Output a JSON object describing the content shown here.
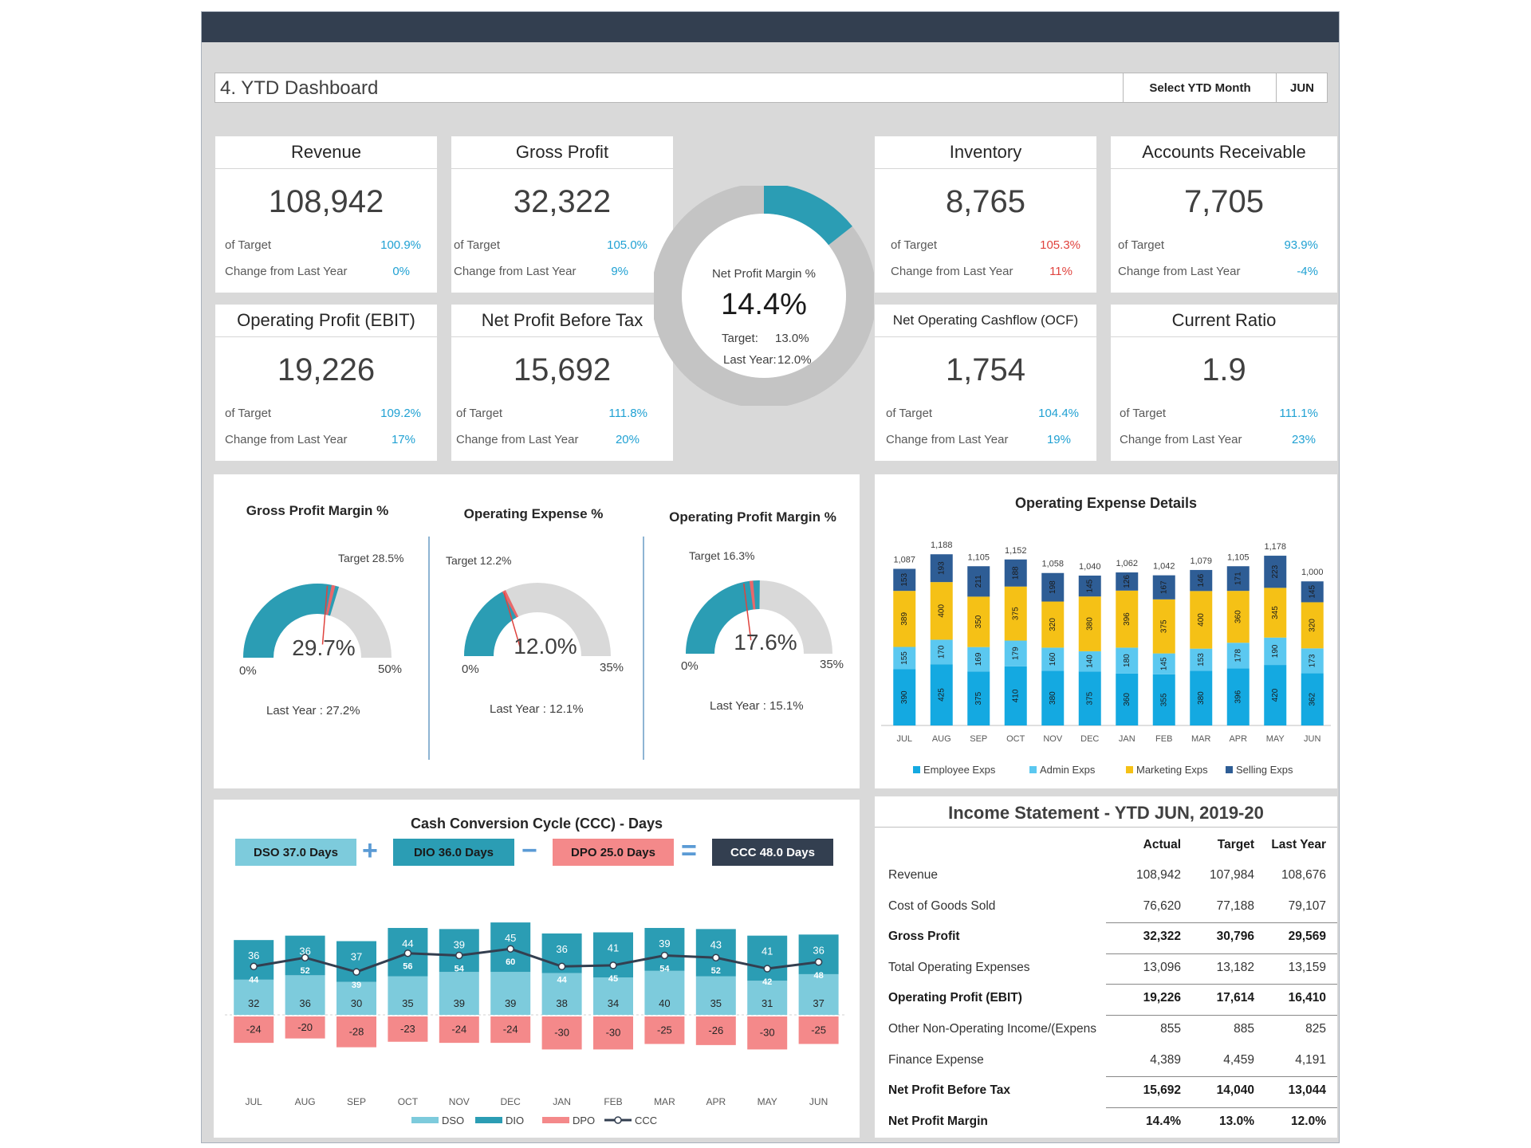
{
  "header": {
    "title": "4. YTD Dashboard",
    "ytd_label": "Select YTD Month",
    "ytd_month": "JUN"
  },
  "common": {
    "of_target": "of Target",
    "change_label": "Change from Last Year"
  },
  "kpis": [
    {
      "title": "Revenue",
      "value": "108,942",
      "of_target": "100.9%",
      "change": "0%",
      "target_color": "#20a1d3"
    },
    {
      "title": "Gross Profit",
      "value": "32,322",
      "of_target": "105.0%",
      "change": "9%",
      "target_color": "#20a1d3"
    },
    {
      "title": "Inventory",
      "value": "8,765",
      "of_target": "105.3%",
      "change": "11%",
      "target_color": "#e0433e"
    },
    {
      "title": "Accounts Receivable",
      "value": "7,705",
      "of_target": "93.9%",
      "change": "-4%",
      "target_color": "#20a1d3"
    },
    {
      "title": "Operating Profit (EBIT)",
      "value": "19,226",
      "of_target": "109.2%",
      "change": "17%",
      "target_color": "#20a1d3"
    },
    {
      "title": "Net Profit Before Tax",
      "value": "15,692",
      "of_target": "111.8%",
      "change": "20%",
      "target_color": "#20a1d3"
    },
    {
      "title": "Net Operating Cashflow (OCF)",
      "value": "1,754",
      "of_target": "104.4%",
      "change": "19%",
      "target_color": "#20a1d3"
    },
    {
      "title": "Current Ratio",
      "value": "1.9",
      "of_target": "111.1%",
      "change": "23%",
      "target_color": "#20a1d3"
    }
  ],
  "net_profit_margin": {
    "label": "Net Profit Margin %",
    "value": "14.4%",
    "value_num": 14.4,
    "target_label": "Target:",
    "target": "13.0%",
    "last_year_label": "Last Year:",
    "last_year": "12.0%"
  },
  "gauges": [
    {
      "title": "Gross Profit Margin %",
      "value": "29.7%",
      "value_num": 29.7,
      "min": "0%",
      "max": "50%",
      "max_num": 50,
      "target": "Target 28.5%",
      "target_num": 28.5,
      "last_year": "Last Year : 27.2%",
      "last_year_num": 27.2
    },
    {
      "title": "Operating Expense %",
      "value": "12.0%",
      "value_num": 12.0,
      "min": "0%",
      "max": "35%",
      "max_num": 35,
      "target": "Target 12.2%",
      "target_num": 12.2,
      "last_year": "Last Year : 12.1%",
      "last_year_num": 12.1
    },
    {
      "title": "Operating Profit Margin %",
      "value": "17.6%",
      "value_num": 17.6,
      "min": "0%",
      "max": "35%",
      "max_num": 35,
      "target": "Target 16.3%",
      "target_num": 16.3,
      "last_year": "Last Year : 15.1%",
      "last_year_num": 15.1
    }
  ],
  "chart_data": [
    {
      "type": "bar",
      "stacked": true,
      "title": "Operating Expense Details",
      "categories": [
        "JUL",
        "AUG",
        "SEP",
        "OCT",
        "NOV",
        "DEC",
        "JAN",
        "FEB",
        "MAR",
        "APR",
        "MAY",
        "JUN"
      ],
      "totals": [
        "1,087",
        "1,188",
        "1,105",
        "1,152",
        "1,058",
        "1,040",
        "1,062",
        "1,042",
        "1,079",
        "1,105",
        "1,178",
        "1,000"
      ],
      "series": [
        {
          "name": "Employee Exps",
          "color": "#14a9e1",
          "values": [
            390,
            425,
            375,
            410,
            380,
            375,
            360,
            355,
            380,
            396,
            420,
            362
          ]
        },
        {
          "name": "Admin Exps",
          "color": "#5bc8f0",
          "values": [
            155,
            170,
            169,
            179,
            160,
            140,
            180,
            145,
            153,
            178,
            190,
            173
          ]
        },
        {
          "name": "Marketing Exps",
          "color": "#f5c116",
          "values": [
            389,
            400,
            350,
            375,
            320,
            380,
            396,
            375,
            400,
            360,
            345,
            320
          ]
        },
        {
          "name": "Selling Exps",
          "color": "#2e5d95",
          "values": [
            153,
            193,
            211,
            188,
            198,
            145,
            126,
            167,
            146,
            171,
            223,
            145
          ]
        }
      ],
      "ylim": [
        0,
        1300
      ]
    },
    {
      "type": "bar",
      "stacked": true,
      "title": "Cash Conversion Cycle (CCC) - Days",
      "categories": [
        "JUL",
        "AUG",
        "SEP",
        "OCT",
        "NOV",
        "DEC",
        "JAN",
        "FEB",
        "MAR",
        "APR",
        "MAY",
        "JUN"
      ],
      "series": [
        {
          "name": "DSO",
          "color": "#7dcbdc",
          "values": [
            32,
            36,
            30,
            35,
            39,
            39,
            38,
            34,
            40,
            35,
            31,
            37
          ]
        },
        {
          "name": "DIO",
          "color": "#2b9db4",
          "values": [
            36,
            36,
            37,
            44,
            39,
            45,
            36,
            41,
            39,
            43,
            41,
            36
          ]
        },
        {
          "name": "DPO",
          "color": "#f4898a",
          "values": [
            -24,
            -20,
            -28,
            -23,
            -24,
            -24,
            -30,
            -30,
            -25,
            -26,
            -30,
            -25
          ]
        },
        {
          "name": "CCC",
          "color": "#333f50",
          "type": "line",
          "values": [
            44,
            52,
            39,
            56,
            54,
            60,
            44,
            45,
            54,
            52,
            42,
            48
          ]
        }
      ],
      "ylim": [
        -35,
        95
      ]
    }
  ],
  "ccc_summary": {
    "dso": "DSO 37.0 Days",
    "plus": "+",
    "dio": "DIO 36.0 Days",
    "minus": "−",
    "dpo": "DPO 25.0 Days",
    "equals": "=",
    "ccc": "CCC 48.0 Days"
  },
  "income_statement": {
    "title": "Income Statement - YTD JUN, 2019-20",
    "columns": [
      "Actual",
      "Target",
      "Last Year"
    ],
    "rows": [
      {
        "name": "Revenue",
        "actual": "108,942",
        "target": "107,984",
        "last_year": "108,676",
        "bold": false
      },
      {
        "name": "Cost of Goods Sold",
        "actual": "76,620",
        "target": "77,188",
        "last_year": "79,107",
        "bold": false
      },
      {
        "name": "Gross Profit",
        "actual": "32,322",
        "target": "30,796",
        "last_year": "29,569",
        "bold": true
      },
      {
        "name": "Total Operating Expenses",
        "actual": "13,096",
        "target": "13,182",
        "last_year": "13,159",
        "bold": false
      },
      {
        "name": "Operating Profit (EBIT)",
        "actual": "19,226",
        "target": "17,614",
        "last_year": "16,410",
        "bold": true
      },
      {
        "name": "Other Non-Operating Income/(Expens",
        "actual": "855",
        "target": "885",
        "last_year": "825",
        "bold": false
      },
      {
        "name": "Finance Expense",
        "actual": "4,389",
        "target": "4,459",
        "last_year": "4,191",
        "bold": false
      },
      {
        "name": "Net Profit Before Tax",
        "actual": "15,692",
        "target": "14,040",
        "last_year": "13,044",
        "bold": true
      },
      {
        "name": "Net Profit Margin",
        "actual": "14.4%",
        "target": "13.0%",
        "last_year": "12.0%",
        "bold": true
      }
    ]
  }
}
